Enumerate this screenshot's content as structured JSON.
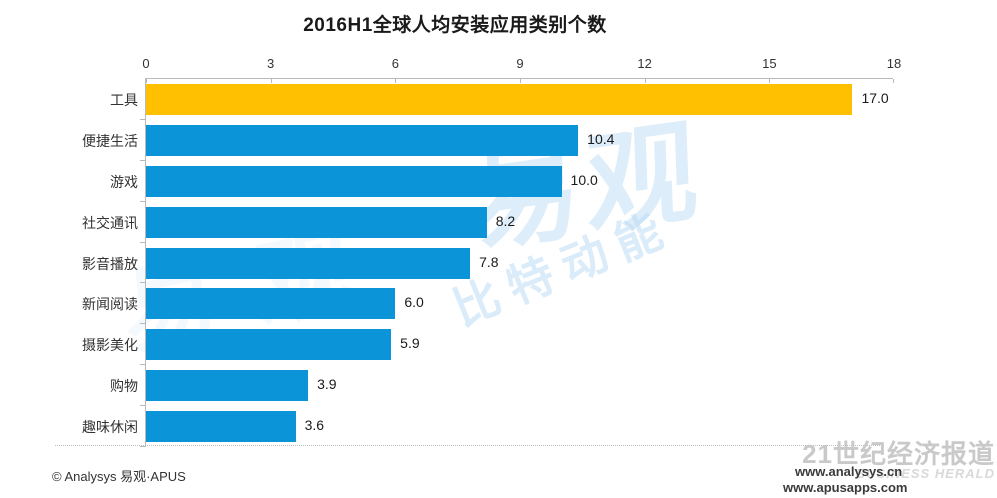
{
  "title": "2016H1全球人均安装应用类别个数",
  "chart_data": {
    "type": "bar",
    "orientation": "horizontal",
    "title": "2016H1全球人均安装应用类别个数",
    "categories": [
      "工具",
      "便捷生活",
      "游戏",
      "社交通讯",
      "影音播放",
      "新闻阅读",
      "摄影美化",
      "购物",
      "趣味休闲"
    ],
    "values": [
      17.0,
      10.4,
      10.0,
      8.2,
      7.8,
      6.0,
      5.9,
      3.9,
      3.6
    ],
    "value_labels": [
      "17.0",
      "10.4",
      "10.0",
      "8.2",
      "7.8",
      "6.0",
      "5.9",
      "3.9",
      "3.6"
    ],
    "xlim": [
      0,
      18
    ],
    "xticks": [
      "0",
      "3",
      "6",
      "9",
      "12",
      "15",
      "18"
    ],
    "grid": false,
    "legend": "none",
    "bar_color_default": "#0c94d8",
    "bar_color_highlight": "#ffc001",
    "highlight_index": 0
  },
  "watermarks": {
    "center_logo": "易观",
    "center_slogan": "比特动能",
    "bottom_right_title": "21世纪经济报道",
    "bottom_right_subtitle": "BUSINESS HERALD",
    "url_1": "www.analysys.cn",
    "url_2": "www.apusapps.com"
  },
  "footer": {
    "copyright": "© Analysys 易观·APUS"
  },
  "colors": {
    "axis": "#b9b9b9",
    "text": "#333333",
    "watermark_blue": "#bddcf5"
  }
}
